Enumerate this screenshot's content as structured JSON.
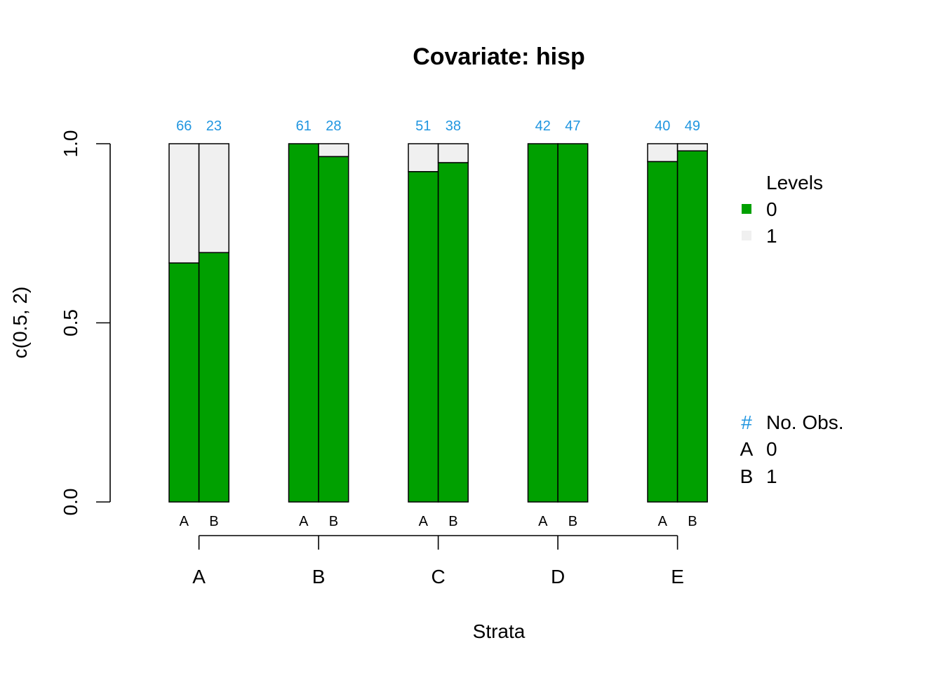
{
  "chart_data": {
    "type": "bar",
    "title": "Covariate: hisp",
    "xlabel": "Strata",
    "ylabel": "c(0.5, 2)",
    "ylim": [
      0,
      1
    ],
    "yticks": [
      "0.0",
      "0.5",
      "1.0"
    ],
    "categories": [
      "A",
      "B",
      "C",
      "D",
      "E"
    ],
    "subgroups": [
      "A",
      "B"
    ],
    "counts": [
      [
        66,
        23
      ],
      [
        61,
        28
      ],
      [
        51,
        38
      ],
      [
        42,
        47
      ],
      [
        40,
        49
      ]
    ],
    "series": [
      {
        "name": "0",
        "color": "#00a000",
        "values": [
          [
            0.667,
            0.696
          ],
          [
            1.0,
            0.964
          ],
          [
            0.922,
            0.947
          ],
          [
            1.0,
            1.0
          ],
          [
            0.95,
            0.98
          ]
        ]
      },
      {
        "name": "1",
        "color": "#f0f0f0",
        "values": [
          [
            0.333,
            0.304
          ],
          [
            0.0,
            0.036
          ],
          [
            0.078,
            0.053
          ],
          [
            0.0,
            0.0
          ],
          [
            0.05,
            0.02
          ]
        ]
      }
    ],
    "count_color": "#2196e0",
    "legend": {
      "placement": "right",
      "levels_title": "Levels",
      "obs_symbol": "#",
      "obs_title": "No. Obs.",
      "obs_rows": [
        {
          "symbol": "A",
          "label": "0"
        },
        {
          "symbol": "B",
          "label": "1"
        }
      ]
    }
  }
}
